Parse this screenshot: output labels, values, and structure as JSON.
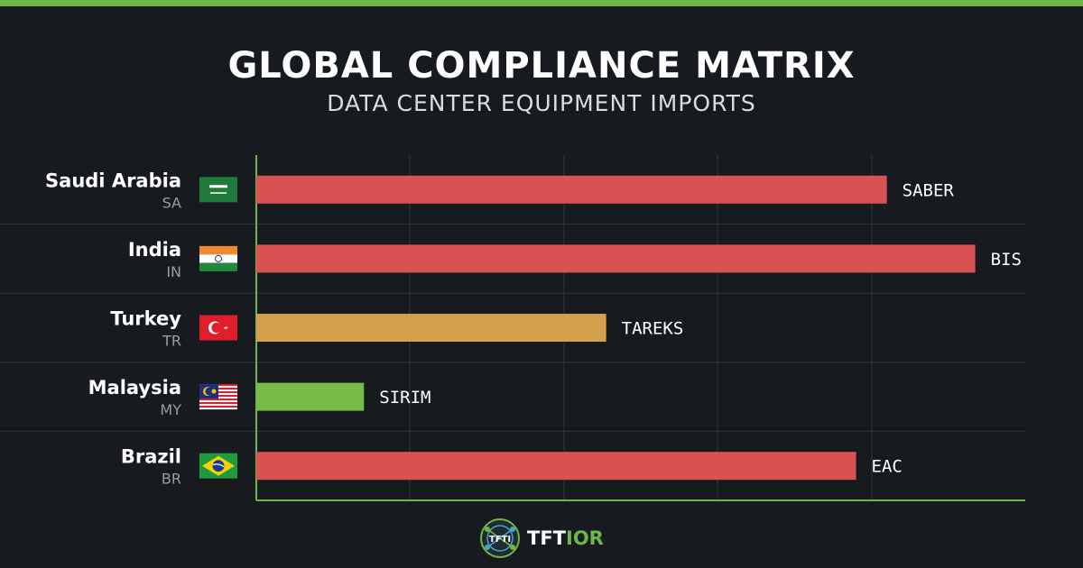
{
  "header": {
    "title": "GLOBAL COMPLIANCE MATRIX",
    "subtitle": "DATA CENTER EQUIPMENT IMPORTS"
  },
  "colors": {
    "accent": "#6db845",
    "background": "#171b1f",
    "red": "#d95252",
    "amber": "#d3a04b",
    "green": "#76bd48"
  },
  "brand": {
    "name_prefix": "TFT",
    "name_suffix": "IOR",
    "logo_text": "TFTI"
  },
  "chart_data": {
    "type": "bar",
    "orientation": "horizontal",
    "categories": [
      "Saudi Arabia",
      "India",
      "Turkey",
      "Malaysia",
      "Brazil"
    ],
    "codes": [
      "SA",
      "IN",
      "TR",
      "MY",
      "BR"
    ],
    "flag_icons": [
      "saudi-arabia-flag-icon",
      "india-flag-icon",
      "turkey-flag-icon",
      "malaysia-flag-icon",
      "brazil-flag-icon"
    ],
    "values": [
      0.82,
      0.935,
      0.455,
      0.14,
      0.78
    ],
    "bar_labels": [
      "SABER",
      "BIS",
      "TAREKS",
      "SIRIM",
      "EAC"
    ],
    "bar_colors": [
      "#d95252",
      "#d95252",
      "#d3a04b",
      "#76bd48",
      "#d95252"
    ],
    "xlim": [
      0,
      1
    ],
    "grid": true,
    "legend": "none"
  }
}
